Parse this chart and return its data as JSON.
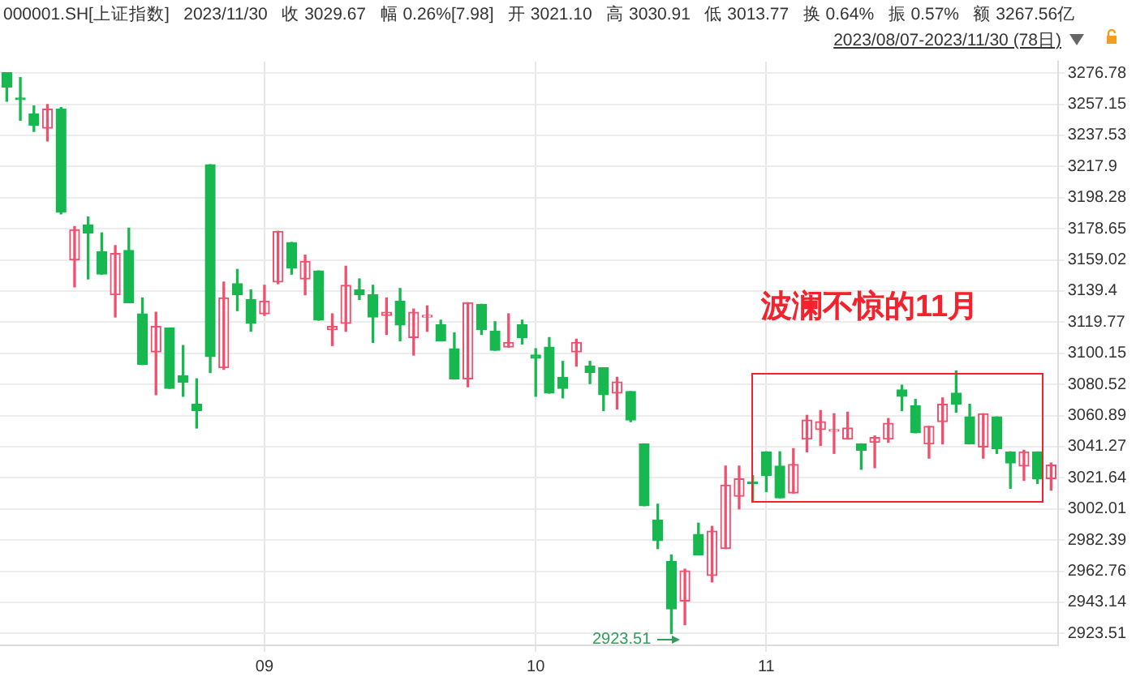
{
  "chart_data": {
    "type": "candlestick",
    "title": "000001.SH[上证指数]   2023/11/30   收 3029.67   幅 0.26%[7.98]   开 3021.10   高 3030.91   低 3013.77   换 0.64%   振 0.57%   额 3267.56亿",
    "subtitle": "2023/08/07-2023/11/30 (78日)",
    "categories": [
      null,
      null,
      null,
      null,
      null,
      null,
      null,
      null,
      null,
      null,
      null,
      null,
      null,
      null,
      null,
      null,
      null,
      null,
      null,
      "09",
      null,
      null,
      null,
      null,
      null,
      null,
      null,
      null,
      null,
      null,
      null,
      null,
      null,
      null,
      null,
      null,
      null,
      null,
      null,
      "10",
      null,
      null,
      null,
      null,
      null,
      null,
      null,
      null,
      null,
      null,
      null,
      null,
      null,
      null,
      null,
      null,
      "11",
      null,
      null,
      null,
      null,
      null,
      null,
      null,
      null,
      null,
      null,
      null,
      null,
      null,
      null,
      null,
      null,
      null,
      null,
      null,
      null,
      null
    ],
    "ohlc": [
      [
        3277,
        3277,
        3259,
        3268
      ],
      [
        3261,
        3274,
        3247,
        3260
      ],
      [
        3251,
        3256,
        3240,
        3244
      ],
      [
        3242,
        3257,
        3234,
        3254
      ],
      [
        3254,
        3255,
        3188,
        3189
      ],
      [
        3159,
        3180,
        3142,
        3178
      ],
      [
        3181,
        3186,
        3147,
        3176
      ],
      [
        3164,
        3176,
        3150,
        3150
      ],
      [
        3137,
        3168,
        3123,
        3163
      ],
      [
        3165,
        3179,
        3132,
        3132
      ],
      [
        3125,
        3135,
        3093,
        3093
      ],
      [
        3101,
        3126,
        3074,
        3117
      ],
      [
        3116,
        3116,
        3078,
        3078
      ],
      [
        3086,
        3105,
        3073,
        3082
      ],
      [
        3068,
        3084,
        3053,
        3064
      ],
      [
        3219,
        3219,
        3088,
        3098
      ],
      [
        3091,
        3145,
        3090,
        3135
      ],
      [
        3144,
        3153,
        3127,
        3137
      ],
      [
        3134,
        3140,
        3114,
        3119
      ],
      [
        3125,
        3143,
        3124,
        3133
      ],
      [
        3145,
        3177,
        3144,
        3177
      ],
      [
        3170,
        3170,
        3150,
        3154
      ],
      [
        3147,
        3162,
        3137,
        3158
      ],
      [
        3152,
        3152,
        3121,
        3121
      ],
      [
        3115,
        3125,
        3105,
        3117
      ],
      [
        3119,
        3155,
        3114,
        3143
      ],
      [
        3140,
        3147,
        3134,
        3137
      ],
      [
        3137,
        3143,
        3107,
        3123
      ],
      [
        3124,
        3135,
        3112,
        3126
      ],
      [
        3133,
        3141,
        3108,
        3118
      ],
      [
        3110,
        3128,
        3099,
        3126
      ],
      [
        3123,
        3130,
        3114,
        3124
      ],
      [
        3118,
        3121,
        3108,
        3108
      ],
      [
        3103,
        3113,
        3084,
        3084
      ],
      [
        3084,
        3132,
        3079,
        3132
      ],
      [
        3131,
        3131,
        3112,
        3115
      ],
      [
        3114,
        3120,
        3102,
        3102
      ],
      [
        3104,
        3125,
        3104,
        3107
      ],
      [
        3118,
        3121,
        3106,
        3110
      ],
      [
        3099,
        3103,
        3073,
        3097
      ],
      [
        3104,
        3110,
        3075,
        3075
      ],
      [
        3085,
        3095,
        3072,
        3078
      ],
      [
        3101,
        3109,
        3092,
        3107
      ],
      [
        3092,
        3095,
        3081,
        3088
      ],
      [
        3091,
        3091,
        3064,
        3074
      ],
      [
        3075,
        3085,
        3065,
        3082
      ],
      [
        3076,
        3076,
        3057,
        3058
      ],
      [
        3043,
        3043,
        3004,
        3004
      ],
      [
        2995,
        3005,
        2977,
        2982
      ],
      [
        2969,
        2973,
        2923.51,
        2939
      ],
      [
        2944,
        2964,
        2929,
        2963
      ],
      [
        2986,
        2993,
        2973,
        2973
      ],
      [
        2960,
        2991,
        2956,
        2988
      ],
      [
        2977,
        3029,
        2977,
        3017
      ],
      [
        3010,
        3029,
        3002,
        3021
      ],
      [
        3019,
        3023,
        3007,
        3018
      ],
      [
        3038,
        3038,
        3013,
        3023
      ],
      [
        3029,
        3038,
        3009,
        3009
      ],
      [
        3012,
        3040,
        3012,
        3030
      ],
      [
        3046,
        3061,
        3038,
        3058
      ],
      [
        3052,
        3064,
        3042,
        3057
      ],
      [
        3051,
        3062,
        3037,
        3052
      ],
      [
        3046,
        3063,
        3046,
        3053
      ],
      [
        3043,
        3043,
        3027,
        3039
      ],
      [
        3044,
        3048,
        3028,
        3047
      ],
      [
        3046,
        3059,
        3044,
        3056
      ],
      [
        3077,
        3080,
        3064,
        3073
      ],
      [
        3067,
        3071,
        3050,
        3050
      ],
      [
        3043,
        3054,
        3034,
        3054
      ],
      [
        3057,
        3072,
        3043,
        3068
      ],
      [
        3075,
        3089,
        3063,
        3068
      ],
      [
        3060,
        3068,
        3043,
        3043
      ],
      [
        3041,
        3062,
        3034,
        3062
      ],
      [
        3060,
        3060,
        3037,
        3040
      ],
      [
        3038,
        3038,
        3015,
        3031
      ],
      [
        3029,
        3039,
        3020,
        3038
      ],
      [
        3038,
        3038,
        3018,
        3021
      ],
      [
        3021.1,
        3030.91,
        3013.77,
        3029.67
      ]
    ],
    "colors": [
      "#16b84f",
      "#16b84f",
      "#16b84f",
      "#f0506e",
      "#16b84f",
      "#f0506e",
      "#16b84f",
      "#16b84f",
      "#f0506e",
      "#16b84f",
      "#16b84f",
      "#f0506e",
      "#16b84f",
      "#16b84f",
      "#16b84f",
      "#16b84f",
      "#f0506e",
      "#16b84f",
      "#16b84f",
      "#f0506e",
      "#f0506e",
      "#16b84f",
      "#f0506e",
      "#16b84f",
      "#f0506e",
      "#f0506e",
      "#16b84f",
      "#16b84f",
      "#f0506e",
      "#16b84f",
      "#f0506e",
      "#f0506e",
      "#16b84f",
      "#16b84f",
      "#f0506e",
      "#16b84f",
      "#16b84f",
      "#f0506e",
      "#16b84f",
      "#16b84f",
      "#16b84f",
      "#16b84f",
      "#f0506e",
      "#16b84f",
      "#16b84f",
      "#f0506e",
      "#16b84f",
      "#16b84f",
      "#16b84f",
      "#16b84f",
      "#f0506e",
      "#16b84f",
      "#f0506e",
      "#f0506e",
      "#f0506e",
      "#16b84f",
      "#16b84f",
      "#16b84f",
      "#f0506e",
      "#f0506e",
      "#f0506e",
      "#f0506e",
      "#f0506e",
      "#16b84f",
      "#f0506e",
      "#f0506e",
      "#16b84f",
      "#16b84f",
      "#f0506e",
      "#f0506e",
      "#16b84f",
      "#16b84f",
      "#f0506e",
      "#16b84f",
      "#16b84f",
      "#f0506e",
      "#16b84f",
      "#f0506e"
    ],
    "ylim": [
      2916,
      3284
    ],
    "yticks": [
      3276.78,
      3257.15,
      3237.53,
      3217.9,
      3198.28,
      3178.65,
      3159.02,
      3139.4,
      3119.77,
      3100.15,
      3080.52,
      3060.89,
      3041.27,
      3021.64,
      3002.01,
      2982.39,
      2962.76,
      2943.14,
      2923.51
    ],
    "grid": true,
    "legend": false,
    "annotations": [
      "波澜不惊的11月",
      "2923.51"
    ]
  }
}
